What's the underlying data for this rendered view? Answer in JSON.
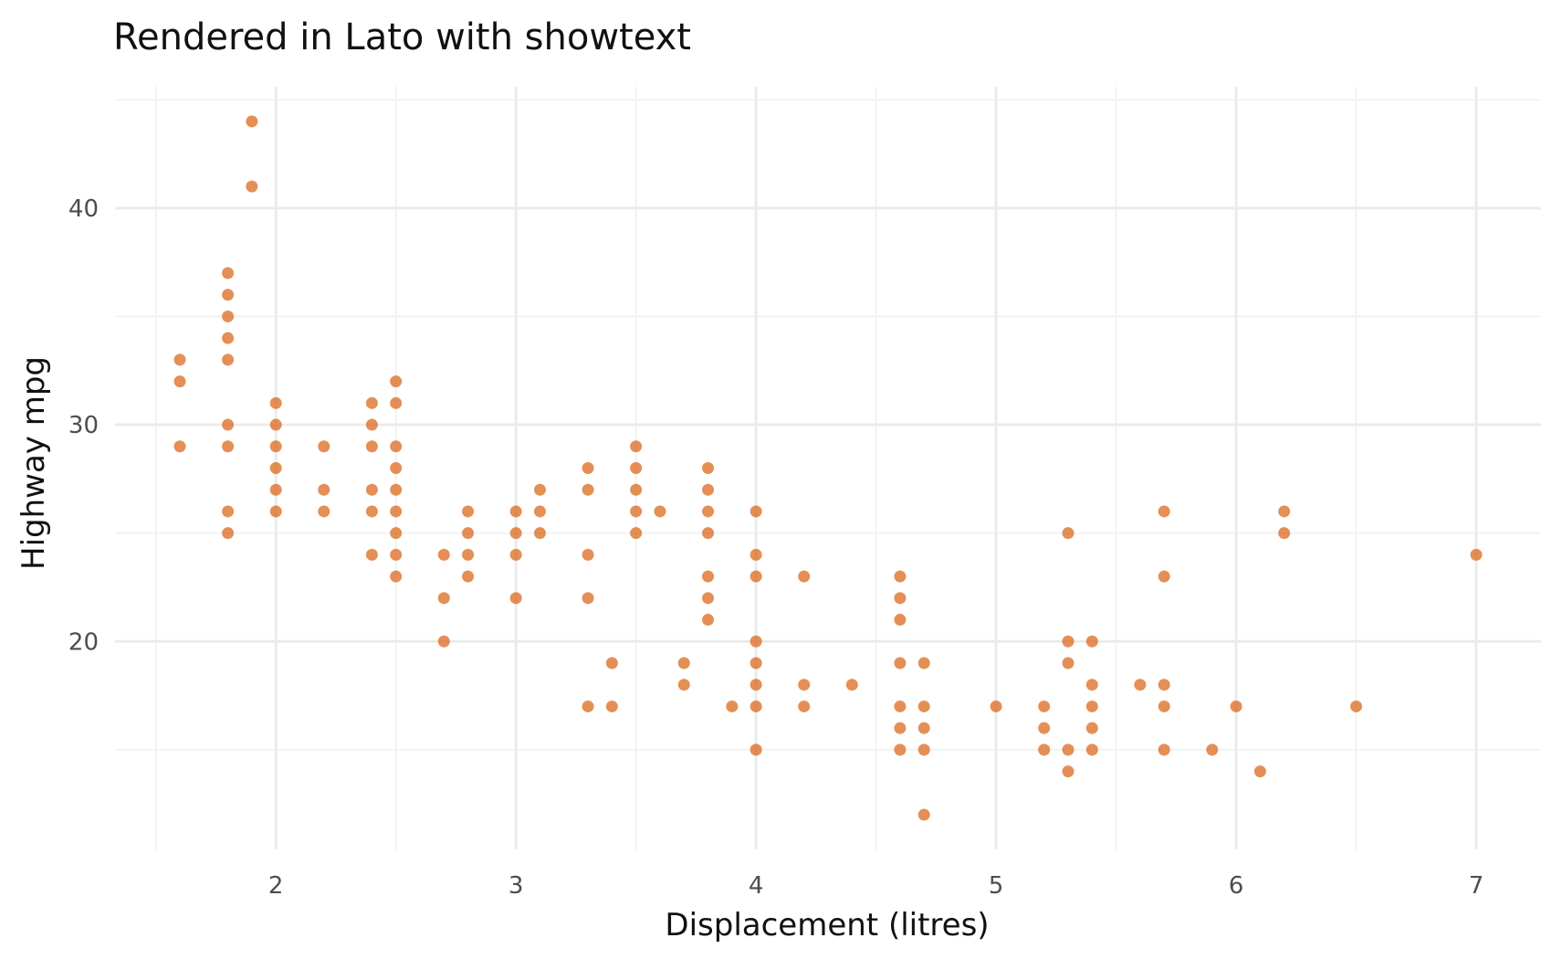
{
  "chart_data": {
    "type": "scatter",
    "title": "Rendered in Lato with showtext",
    "xlabel": "Displacement (litres)",
    "ylabel": "Highway mpg",
    "xlim": [
      1.33,
      7.27
    ],
    "ylim": [
      10.4,
      45.6
    ],
    "xticks": [
      2,
      3,
      4,
      5,
      6,
      7
    ],
    "xticks_minor": [
      1.5,
      2.5,
      3.5,
      4.5,
      5.5,
      6.5
    ],
    "yticks": [
      20,
      30,
      40
    ],
    "yticks_minor": [
      15,
      25,
      35,
      45
    ],
    "grid": true,
    "legend": "none",
    "point_color": "#D95F0E",
    "background": "#FFFFFF",
    "series": [
      {
        "points": [
          [
            1.6,
            33
          ],
          [
            1.6,
            32
          ],
          [
            1.6,
            29
          ],
          [
            1.8,
            37
          ],
          [
            1.8,
            36
          ],
          [
            1.8,
            35
          ],
          [
            1.8,
            34
          ],
          [
            1.8,
            33
          ],
          [
            1.8,
            30
          ],
          [
            1.8,
            29
          ],
          [
            1.8,
            26
          ],
          [
            1.8,
            25
          ],
          [
            1.9,
            44
          ],
          [
            1.9,
            41
          ],
          [
            2.0,
            31
          ],
          [
            2.0,
            30
          ],
          [
            2.0,
            29
          ],
          [
            2.0,
            28
          ],
          [
            2.0,
            27
          ],
          [
            2.0,
            26
          ],
          [
            2.2,
            29
          ],
          [
            2.2,
            27
          ],
          [
            2.2,
            26
          ],
          [
            2.4,
            31
          ],
          [
            2.4,
            30
          ],
          [
            2.4,
            29
          ],
          [
            2.4,
            27
          ],
          [
            2.4,
            26
          ],
          [
            2.4,
            24
          ],
          [
            2.5,
            32
          ],
          [
            2.5,
            31
          ],
          [
            2.5,
            29
          ],
          [
            2.5,
            28
          ],
          [
            2.5,
            27
          ],
          [
            2.5,
            26
          ],
          [
            2.5,
            25
          ],
          [
            2.5,
            24
          ],
          [
            2.5,
            23
          ],
          [
            2.7,
            24
          ],
          [
            2.7,
            22
          ],
          [
            2.7,
            20
          ],
          [
            2.8,
            26
          ],
          [
            2.8,
            25
          ],
          [
            2.8,
            24
          ],
          [
            2.8,
            23
          ],
          [
            3.0,
            26
          ],
          [
            3.0,
            25
          ],
          [
            3.0,
            24
          ],
          [
            3.0,
            22
          ],
          [
            3.1,
            27
          ],
          [
            3.1,
            26
          ],
          [
            3.1,
            25
          ],
          [
            3.3,
            28
          ],
          [
            3.3,
            27
          ],
          [
            3.3,
            24
          ],
          [
            3.3,
            22
          ],
          [
            3.3,
            17
          ],
          [
            3.4,
            19
          ],
          [
            3.4,
            17
          ],
          [
            3.5,
            29
          ],
          [
            3.5,
            28
          ],
          [
            3.5,
            27
          ],
          [
            3.5,
            26
          ],
          [
            3.5,
            25
          ],
          [
            3.6,
            26
          ],
          [
            3.7,
            19
          ],
          [
            3.7,
            18
          ],
          [
            3.8,
            28
          ],
          [
            3.8,
            27
          ],
          [
            3.8,
            26
          ],
          [
            3.8,
            25
          ],
          [
            3.8,
            23
          ],
          [
            3.8,
            22
          ],
          [
            3.8,
            21
          ],
          [
            3.9,
            17
          ],
          [
            4.0,
            26
          ],
          [
            4.0,
            24
          ],
          [
            4.0,
            23
          ],
          [
            4.0,
            20
          ],
          [
            4.0,
            19
          ],
          [
            4.0,
            18
          ],
          [
            4.0,
            17
          ],
          [
            4.0,
            15
          ],
          [
            4.2,
            23
          ],
          [
            4.2,
            18
          ],
          [
            4.2,
            17
          ],
          [
            4.4,
            18
          ],
          [
            4.6,
            23
          ],
          [
            4.6,
            22
          ],
          [
            4.6,
            21
          ],
          [
            4.6,
            19
          ],
          [
            4.6,
            17
          ],
          [
            4.6,
            16
          ],
          [
            4.6,
            15
          ],
          [
            4.7,
            19
          ],
          [
            4.7,
            17
          ],
          [
            4.7,
            16
          ],
          [
            4.7,
            15
          ],
          [
            4.7,
            12
          ],
          [
            5.0,
            17
          ],
          [
            5.2,
            17
          ],
          [
            5.2,
            16
          ],
          [
            5.2,
            15
          ],
          [
            5.3,
            25
          ],
          [
            5.3,
            20
          ],
          [
            5.3,
            19
          ],
          [
            5.3,
            15
          ],
          [
            5.3,
            14
          ],
          [
            5.4,
            20
          ],
          [
            5.4,
            18
          ],
          [
            5.4,
            17
          ],
          [
            5.4,
            16
          ],
          [
            5.4,
            15
          ],
          [
            5.6,
            18
          ],
          [
            5.7,
            26
          ],
          [
            5.7,
            23
          ],
          [
            5.7,
            18
          ],
          [
            5.7,
            17
          ],
          [
            5.7,
            15
          ],
          [
            5.9,
            15
          ],
          [
            6.0,
            17
          ],
          [
            6.1,
            14
          ],
          [
            6.2,
            26
          ],
          [
            6.2,
            25
          ],
          [
            6.5,
            17
          ],
          [
            7.0,
            24
          ]
        ]
      }
    ]
  }
}
